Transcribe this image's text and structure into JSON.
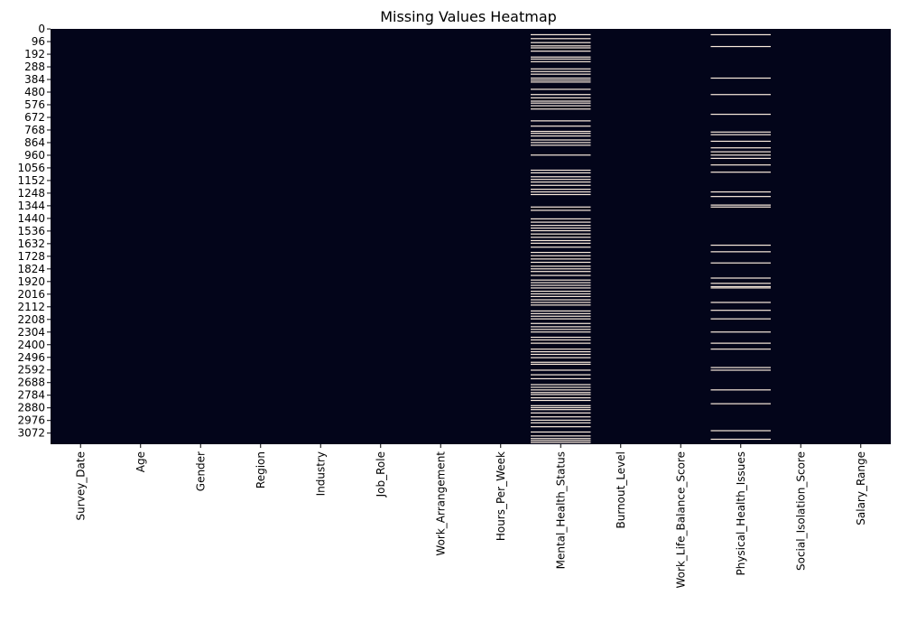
{
  "chart_data": {
    "type": "heatmap",
    "title": "Missing Values Heatmap",
    "xlabel": "",
    "ylabel": "",
    "columns": [
      "Survey_Date",
      "Age",
      "Gender",
      "Region",
      "Industry",
      "Job_Role",
      "Work_Arrangement",
      "Hours_Per_Week",
      "Mental_Health_Status",
      "Burnout_Level",
      "Work_Life_Balance_Score",
      "Physical_Health_Issues",
      "Social_Isolation_Score",
      "Salary_Range"
    ],
    "row_count": 3157,
    "y_ticks": [
      0,
      96,
      192,
      288,
      384,
      480,
      576,
      672,
      768,
      864,
      960,
      1056,
      1152,
      1248,
      1344,
      1440,
      1536,
      1632,
      1728,
      1824,
      1920,
      2016,
      2112,
      2208,
      2304,
      2400,
      2496,
      2592,
      2688,
      2784,
      2880,
      2976,
      3072
    ],
    "ylim": [
      0,
      3157
    ],
    "present_color": "#03051a",
    "missing_color": "#faebdd",
    "missing_rows": {
      "Mental_Health_Status": [
        40,
        70,
        100,
        125,
        140,
        165,
        210,
        225,
        245,
        300,
        320,
        340,
        370,
        385,
        400,
        455,
        495,
        520,
        545,
        560,
        580,
        605,
        695,
        735,
        775,
        790,
        810,
        840,
        860,
        880,
        955,
        1070,
        1090,
        1120,
        1140,
        1160,
        1185,
        1215,
        1235,
        1255,
        1350,
        1375,
        1440,
        1465,
        1490,
        1510,
        1530,
        1555,
        1580,
        1605,
        1625,
        1655,
        1695,
        1720,
        1745,
        1770,
        1800,
        1820,
        1840,
        1870,
        1905,
        1925,
        1945,
        1965,
        1990,
        2010,
        2030,
        2055,
        2075,
        2095,
        2140,
        2160,
        2180,
        2200,
        2235,
        2260,
        2280,
        2300,
        2340,
        2360,
        2385,
        2430,
        2450,
        2470,
        2495,
        2530,
        2545,
        2590,
        2625,
        2655,
        2700,
        2720,
        2740,
        2760,
        2775,
        2800,
        2820,
        2860,
        2875,
        2890,
        2915,
        2945,
        2970,
        2990,
        3020,
        3060,
        3090,
        3110,
        3125,
        3140
      ],
      "Physical_Health_Issues": [
        40,
        130,
        370,
        495,
        645,
        780,
        800,
        850,
        900,
        930,
        955,
        980,
        1030,
        1085,
        1235,
        1270,
        1335,
        1350,
        1640,
        1690,
        1775,
        1890,
        1930,
        1955,
        1965,
        2075,
        2135,
        2200,
        2300,
        2385,
        2430,
        2570,
        2590,
        2740,
        2845,
        3050,
        3115
      ]
    }
  }
}
